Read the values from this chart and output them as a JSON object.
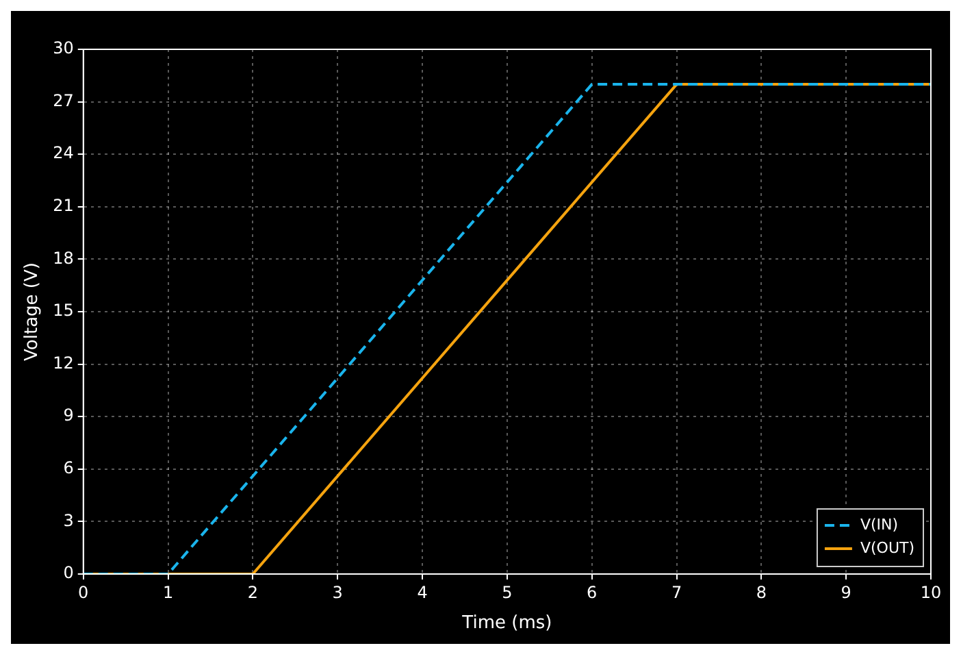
{
  "chart_data": {
    "type": "line",
    "xlabel": "Time (ms)",
    "ylabel": "Voltage (V)",
    "xlim": [
      0,
      10
    ],
    "xticks": [
      0,
      1,
      2,
      3,
      4,
      5,
      6,
      7,
      8,
      9,
      10
    ],
    "ylim": [
      0,
      30
    ],
    "yticks": [
      0,
      3,
      6,
      9,
      12,
      15,
      18,
      21,
      24,
      27,
      30
    ],
    "grid": true,
    "legend": "bottom right",
    "marker": "none",
    "series": [
      {
        "name": "V(IN)",
        "color": "#1ab4ec",
        "x": [
          0,
          1,
          6,
          10
        ],
        "values": [
          0,
          0,
          28,
          28
        ],
        "line_style": "dashed"
      },
      {
        "name": "V(OUT)",
        "color": "#f5a30f",
        "x": [
          0,
          2,
          7,
          10
        ],
        "values": [
          0,
          0,
          28,
          28
        ],
        "line_style": "solid"
      }
    ]
  }
}
